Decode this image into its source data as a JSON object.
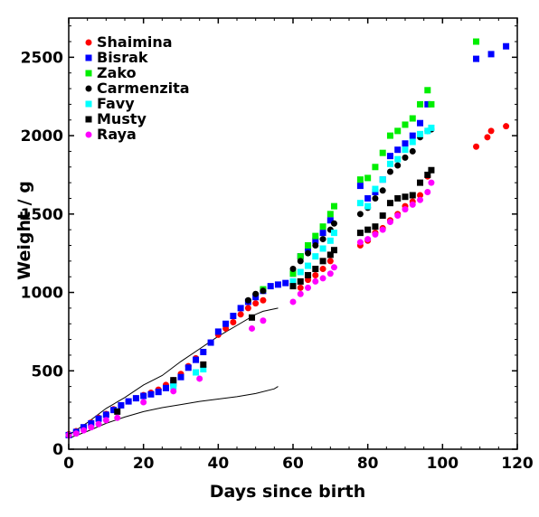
{
  "chart_data": {
    "type": "scatter",
    "title": "",
    "xlabel": "Days since birth",
    "ylabel": "Weight / g",
    "xlim": [
      0,
      120
    ],
    "ylim": [
      0,
      2750
    ],
    "xticks": [
      0,
      20,
      40,
      60,
      80,
      100,
      120
    ],
    "yticks": [
      0,
      500,
      1000,
      1500,
      2000,
      2500
    ],
    "grid": false,
    "legend_position": "top-left",
    "series": [
      {
        "name": "Shaimina",
        "color": "#ff0000",
        "marker": "circle",
        "x": [
          0,
          2,
          4,
          6,
          8,
          10,
          12,
          14,
          16,
          18,
          20,
          22,
          24,
          26,
          28,
          30,
          32,
          34,
          36,
          38,
          40,
          42,
          44,
          46,
          48,
          50,
          52,
          62,
          64,
          66,
          68,
          70,
          78,
          80,
          82,
          84,
          86,
          88,
          90,
          92,
          94,
          96,
          109,
          112,
          113,
          117
        ],
        "y": [
          95,
          115,
          140,
          170,
          200,
          225,
          255,
          280,
          305,
          325,
          345,
          360,
          380,
          410,
          440,
          480,
          530,
          580,
          620,
          680,
          730,
          770,
          810,
          860,
          900,
          930,
          950,
          1030,
          1080,
          1110,
          1150,
          1200,
          1300,
          1330,
          1380,
          1410,
          1460,
          1500,
          1550,
          1580,
          1620,
          1740,
          1930,
          1990,
          2030,
          2060
        ]
      },
      {
        "name": "Bisrak",
        "color": "#0000ff",
        "marker": "square",
        "x": [
          0,
          2,
          4,
          6,
          8,
          10,
          12,
          14,
          16,
          18,
          20,
          22,
          24,
          26,
          28,
          30,
          32,
          34,
          36,
          38,
          40,
          42,
          44,
          46,
          48,
          50,
          52,
          54,
          56,
          58,
          60,
          62,
          64,
          66,
          68,
          70,
          78,
          80,
          82,
          84,
          86,
          88,
          90,
          92,
          94,
          96,
          109,
          113,
          117
        ],
        "y": [
          90,
          110,
          140,
          165,
          195,
          220,
          250,
          280,
          305,
          325,
          340,
          350,
          365,
          390,
          420,
          460,
          520,
          570,
          620,
          680,
          750,
          800,
          850,
          900,
          940,
          970,
          1010,
          1040,
          1050,
          1060,
          1120,
          1230,
          1280,
          1330,
          1380,
          1460,
          1680,
          1600,
          1640,
          1720,
          1870,
          1910,
          1950,
          2000,
          2080,
          2200,
          2490,
          2520,
          2570
        ]
      },
      {
        "name": "Zako",
        "color": "#00ee00",
        "marker": "square",
        "x": [
          52,
          60,
          62,
          64,
          66,
          68,
          70,
          71,
          78,
          80,
          82,
          84,
          86,
          88,
          90,
          92,
          94,
          96,
          97,
          109
        ],
        "y": [
          1020,
          1120,
          1230,
          1300,
          1360,
          1420,
          1500,
          1550,
          1720,
          1730,
          1800,
          1890,
          2000,
          2030,
          2070,
          2110,
          2200,
          2290,
          2200,
          2600
        ]
      },
      {
        "name": "Carmenzita",
        "color": "#000000",
        "marker": "circle",
        "x": [
          48,
          50,
          52,
          60,
          62,
          64,
          66,
          68,
          70,
          71,
          78,
          80,
          82,
          84,
          86,
          88,
          90,
          92,
          94,
          96,
          97
        ],
        "y": [
          950,
          990,
          1010,
          1150,
          1200,
          1250,
          1300,
          1340,
          1400,
          1440,
          1500,
          1540,
          1600,
          1650,
          1770,
          1810,
          1860,
          1900,
          1990,
          2030,
          2040
        ]
      },
      {
        "name": "Favy",
        "color": "#00ffff",
        "marker": "square",
        "x": [
          28,
          34,
          36,
          60,
          62,
          64,
          66,
          68,
          70,
          71,
          78,
          80,
          82,
          84,
          86,
          88,
          90,
          92,
          94,
          96,
          97
        ],
        "y": [
          400,
          490,
          510,
          1070,
          1130,
          1170,
          1230,
          1280,
          1330,
          1380,
          1570,
          1550,
          1660,
          1720,
          1820,
          1850,
          1910,
          1960,
          2010,
          2030,
          2050
        ]
      },
      {
        "name": "Musty",
        "color": "#000000",
        "marker": "square",
        "x": [
          13,
          28,
          36,
          49,
          60,
          62,
          64,
          66,
          68,
          70,
          71,
          78,
          80,
          82,
          84,
          86,
          88,
          90,
          92,
          94,
          96,
          97
        ],
        "y": [
          240,
          440,
          540,
          840,
          1040,
          1070,
          1110,
          1150,
          1200,
          1240,
          1270,
          1380,
          1400,
          1420,
          1490,
          1570,
          1600,
          1610,
          1620,
          1700,
          1750,
          1780
        ]
      },
      {
        "name": "Raya",
        "color": "#ff00ff",
        "marker": "circle",
        "x": [
          0,
          2,
          4,
          6,
          8,
          10,
          13,
          20,
          28,
          35,
          49,
          52,
          60,
          62,
          64,
          66,
          68,
          70,
          71,
          78,
          80,
          82,
          84,
          86,
          88,
          90,
          92,
          94,
          96,
          97
        ],
        "y": [
          90,
          100,
          120,
          140,
          160,
          185,
          200,
          300,
          370,
          450,
          770,
          820,
          940,
          990,
          1030,
          1070,
          1090,
          1120,
          1160,
          1320,
          1340,
          1370,
          1400,
          1450,
          1490,
          1530,
          1560,
          1590,
          1640,
          1700
        ]
      }
    ],
    "reference_curves": [
      {
        "color": "#000000",
        "x": [
          0,
          5,
          10,
          15,
          20,
          25,
          30,
          35,
          40,
          45,
          50,
          52,
          56
        ],
        "y": [
          90,
          170,
          260,
          330,
          410,
          470,
          560,
          640,
          720,
          790,
          860,
          880,
          900
        ]
      },
      {
        "color": "#000000",
        "x": [
          0,
          5,
          10,
          15,
          20,
          25,
          30,
          35,
          40,
          45,
          50,
          55,
          56
        ],
        "y": [
          70,
          115,
          165,
          205,
          240,
          265,
          285,
          305,
          320,
          335,
          355,
          385,
          400
        ]
      }
    ]
  }
}
